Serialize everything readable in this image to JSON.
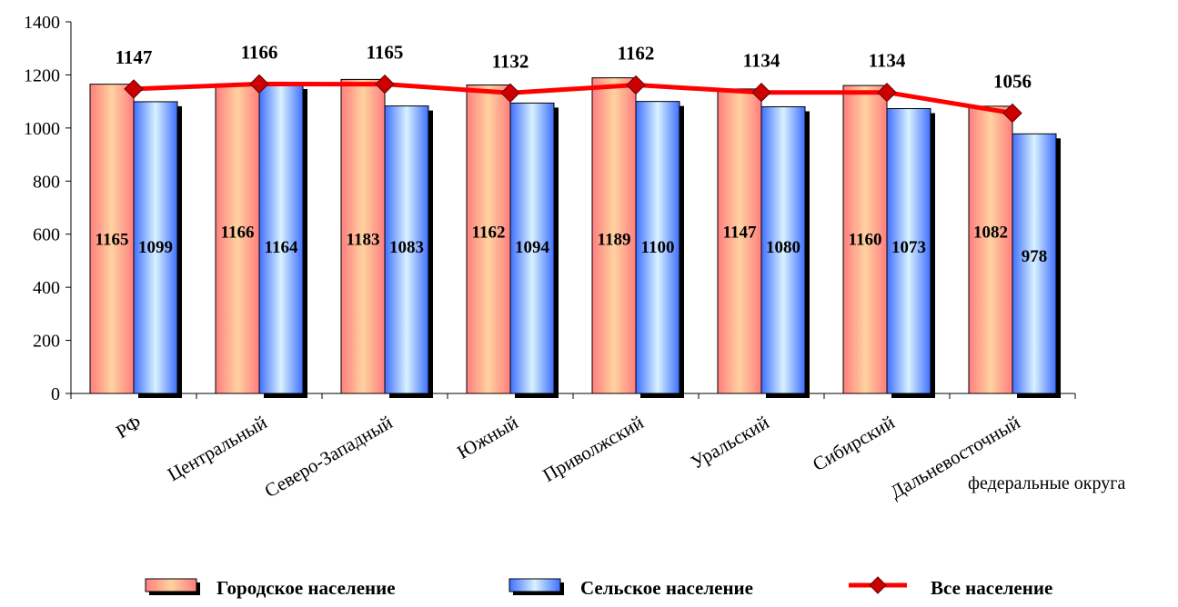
{
  "chart_data": {
    "type": "bar",
    "categories": [
      "РФ",
      "Центральный",
      "Северо-Западный",
      "Южный",
      "Приволжский",
      "Уральский",
      "Сибирский",
      "Дальневосточный"
    ],
    "series": [
      {
        "name": "Городское население",
        "kind": "bar",
        "values": [
          1165,
          1166,
          1183,
          1162,
          1189,
          1147,
          1160,
          1082
        ],
        "color": "#ff8080"
      },
      {
        "name": "Сельское население",
        "kind": "bar",
        "values": [
          1099,
          1164,
          1083,
          1094,
          1100,
          1080,
          1073,
          978
        ],
        "color": "#4f7fff"
      },
      {
        "name": "Все население",
        "kind": "line",
        "values": [
          1147,
          1166,
          1165,
          1132,
          1162,
          1134,
          1134,
          1056
        ],
        "color": "#ff0000"
      }
    ],
    "xlabel": "федеральные округа",
    "ylabel": "",
    "ylim": [
      0,
      1400
    ],
    "yticks": [
      0,
      200,
      400,
      600,
      800,
      1000,
      1200,
      1400
    ],
    "grid": false,
    "legend_position": "bottom"
  }
}
